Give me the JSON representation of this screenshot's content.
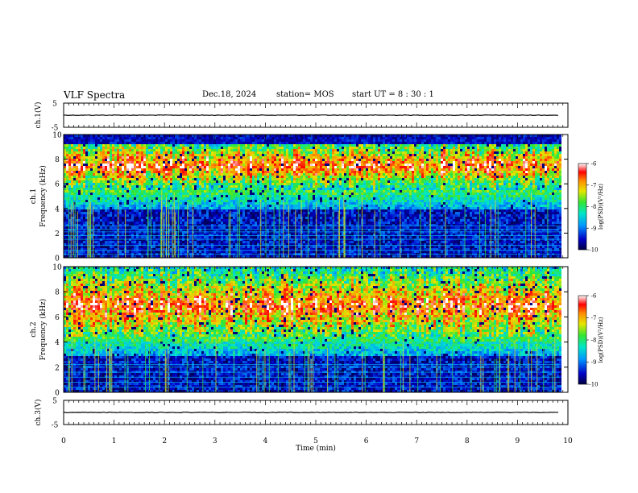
{
  "header": {
    "title": "VLF Spectra",
    "date": "Dec.18, 2024",
    "station": "station= MOS",
    "start": "start  UT =   8  : 30 : 1"
  },
  "chart_data": [
    {
      "type": "line",
      "name_label": "ch.1(V)",
      "ylim": [
        -5,
        5
      ],
      "y_ticks": [
        "5",
        "-5"
      ],
      "x": [
        0,
        10
      ],
      "values": [
        0,
        0
      ]
    },
    {
      "type": "heatmap",
      "ylabel": "ch.1\nFrequency (kHz)",
      "y_ticks": [
        "0",
        "2",
        "4",
        "6",
        "8",
        "10"
      ],
      "ylim": [
        0,
        10
      ],
      "xlim": [
        0,
        9.85
      ],
      "band_center_khz": 7.6,
      "band_low_khz": 5.6,
      "band_high_khz": 9.0,
      "horizontal_lines_khz": [
        0.3,
        0.6,
        1.0,
        1.5,
        1.8,
        2.1,
        2.3,
        2.6
      ],
      "colorbar": {
        "label": "log(PSD)(V²/Hz)",
        "ticks": [
          "-6",
          "-7",
          "-8",
          "-9",
          "-10"
        ],
        "range": [
          -10,
          -6
        ]
      }
    },
    {
      "type": "heatmap",
      "ylabel": "ch.2\nFrequency (kHz)",
      "y_ticks": [
        "0",
        "2",
        "4",
        "6",
        "8",
        "10"
      ],
      "ylim": [
        0,
        10
      ],
      "xlim": [
        0,
        9.85
      ],
      "band_center_khz": 7.0,
      "band_low_khz": 4.5,
      "band_high_khz": 9.8,
      "horizontal_lines_khz": [
        0.4,
        0.8,
        1.2,
        1.6,
        2.0,
        2.2,
        3.9
      ],
      "colorbar": {
        "label": "log(PSD)(V²/Hz)",
        "ticks": [
          "-6",
          "-7",
          "-8",
          "-9",
          "-10"
        ],
        "range": [
          -10,
          -6
        ]
      }
    },
    {
      "type": "line",
      "name_label": "ch.3(V)",
      "ylim": [
        -5,
        5
      ],
      "y_ticks": [
        "5",
        "-5"
      ],
      "x": [
        0,
        10
      ],
      "values": [
        0,
        0
      ]
    }
  ],
  "x_axis": {
    "label": "Time  (min)",
    "ticks": [
      "0",
      "1",
      "2",
      "3",
      "4",
      "5",
      "6",
      "7",
      "8",
      "9",
      "10"
    ],
    "range": [
      0,
      10
    ]
  },
  "colors": {
    "background": "#ffffff",
    "axis": "#000000"
  }
}
